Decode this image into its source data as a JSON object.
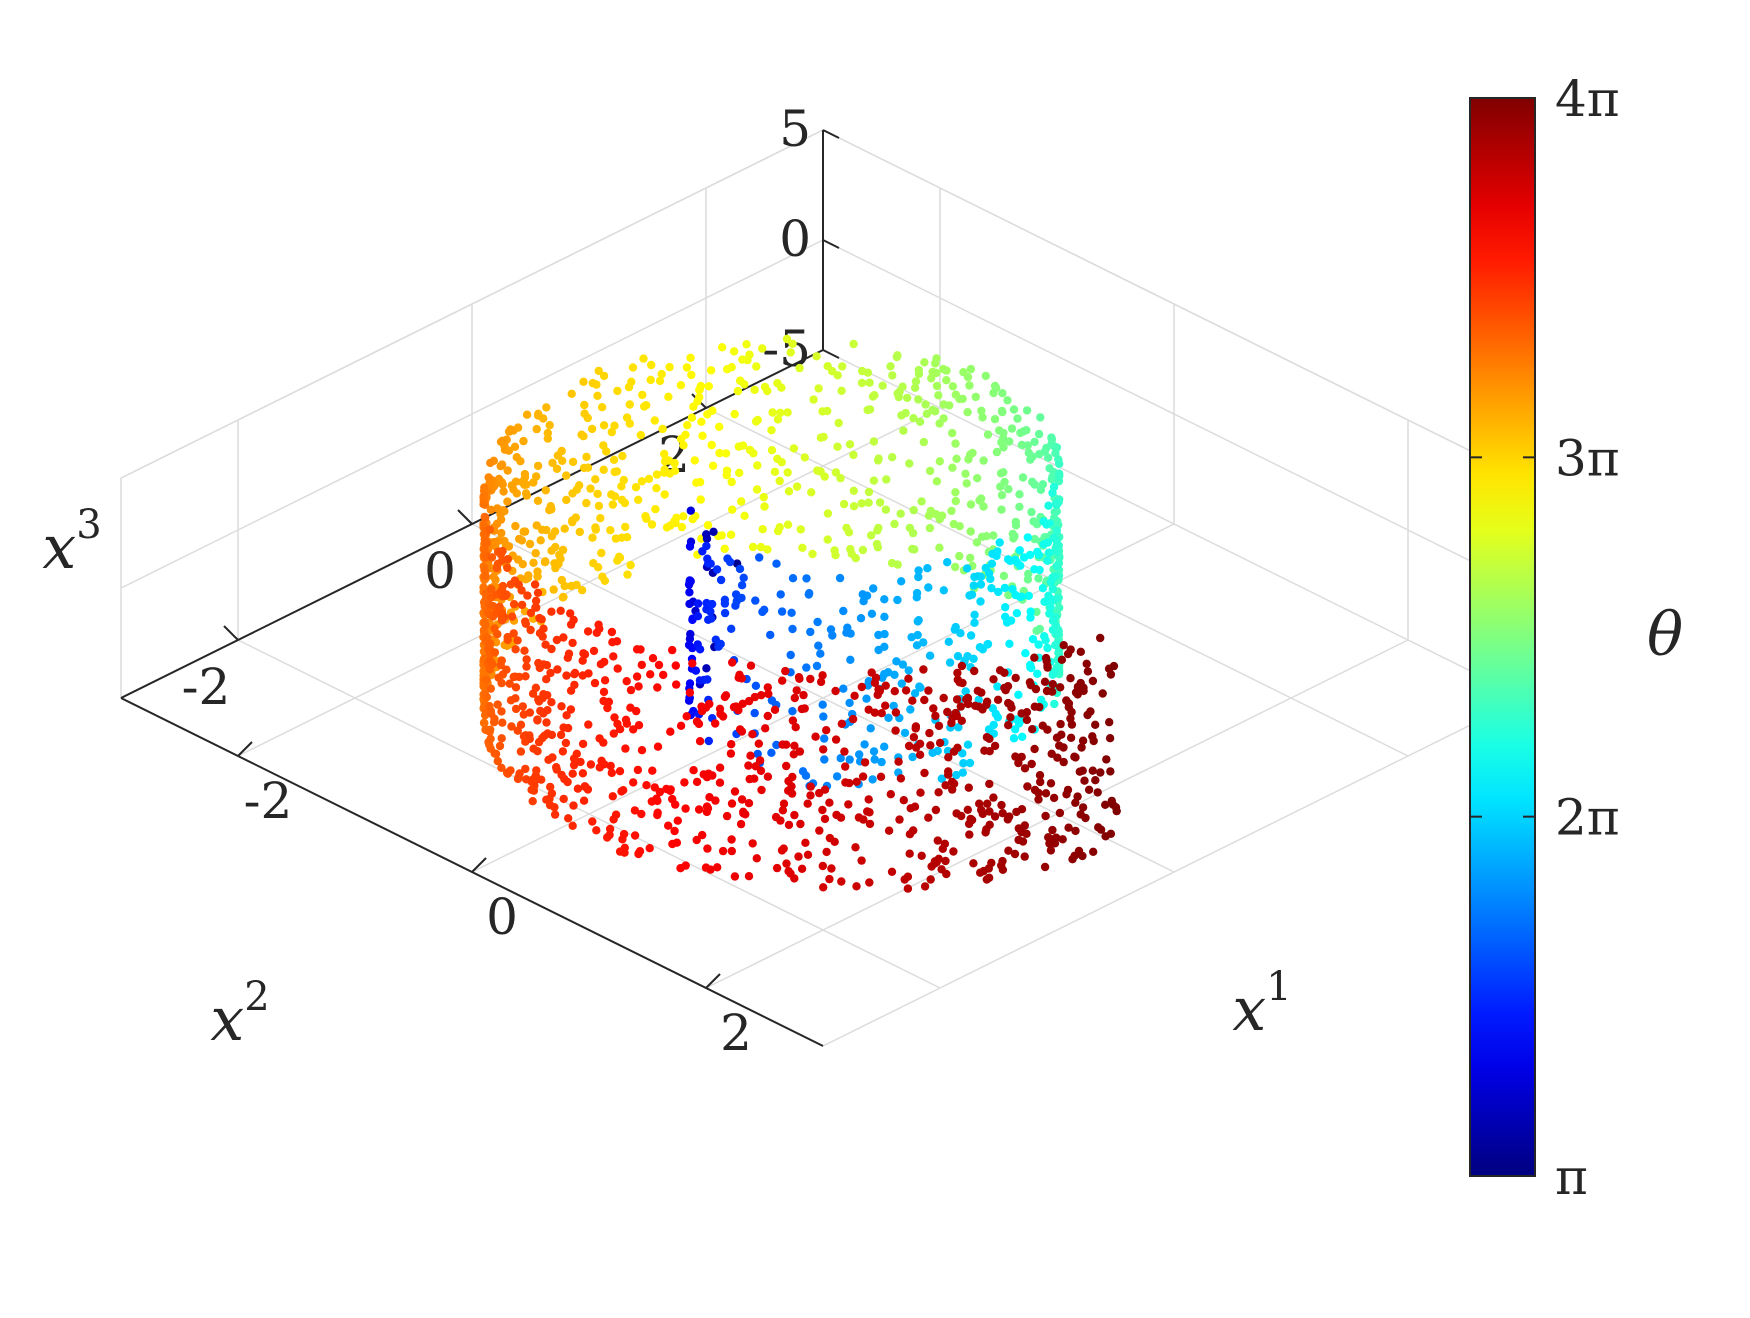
{
  "chart_data": {
    "type": "scatter",
    "title": "",
    "subtitle": "",
    "axes": {
      "x": {
        "label": "x",
        "label_superscript": "1",
        "range": [
          -3,
          3
        ],
        "ticks": [
          "-2",
          "0",
          "2"
        ]
      },
      "y": {
        "label": "x",
        "label_superscript": "2",
        "range": [
          -3,
          3
        ],
        "ticks": [
          "-2",
          "0",
          "2"
        ]
      },
      "z": {
        "label": "x",
        "label_superscript": "3",
        "range": [
          -5,
          5
        ],
        "ticks": [
          "-5",
          "0",
          "5"
        ]
      }
    },
    "grid": true,
    "colorbar": {
      "label": "θ",
      "colormap": "jet",
      "range": [
        3.14159,
        12.56637
      ],
      "ticks": [
        "π",
        "2π",
        "3π",
        "4π"
      ],
      "tick_values": [
        3.14159,
        6.28319,
        9.42478,
        12.56637
      ]
    },
    "manifold": "swiss-roll",
    "parametrization": {
      "x1": "θ·cos(θ) / 5",
      "x2": "θ·sin(θ) / 5",
      "x3": "uniform in [-5, 5]",
      "theta_range": [
        3.14159,
        12.56637
      ]
    },
    "point_count": 2000,
    "point_color_hex": {
      "low": "#00008f",
      "mid": "#7fff7f",
      "high": "#800000"
    }
  }
}
